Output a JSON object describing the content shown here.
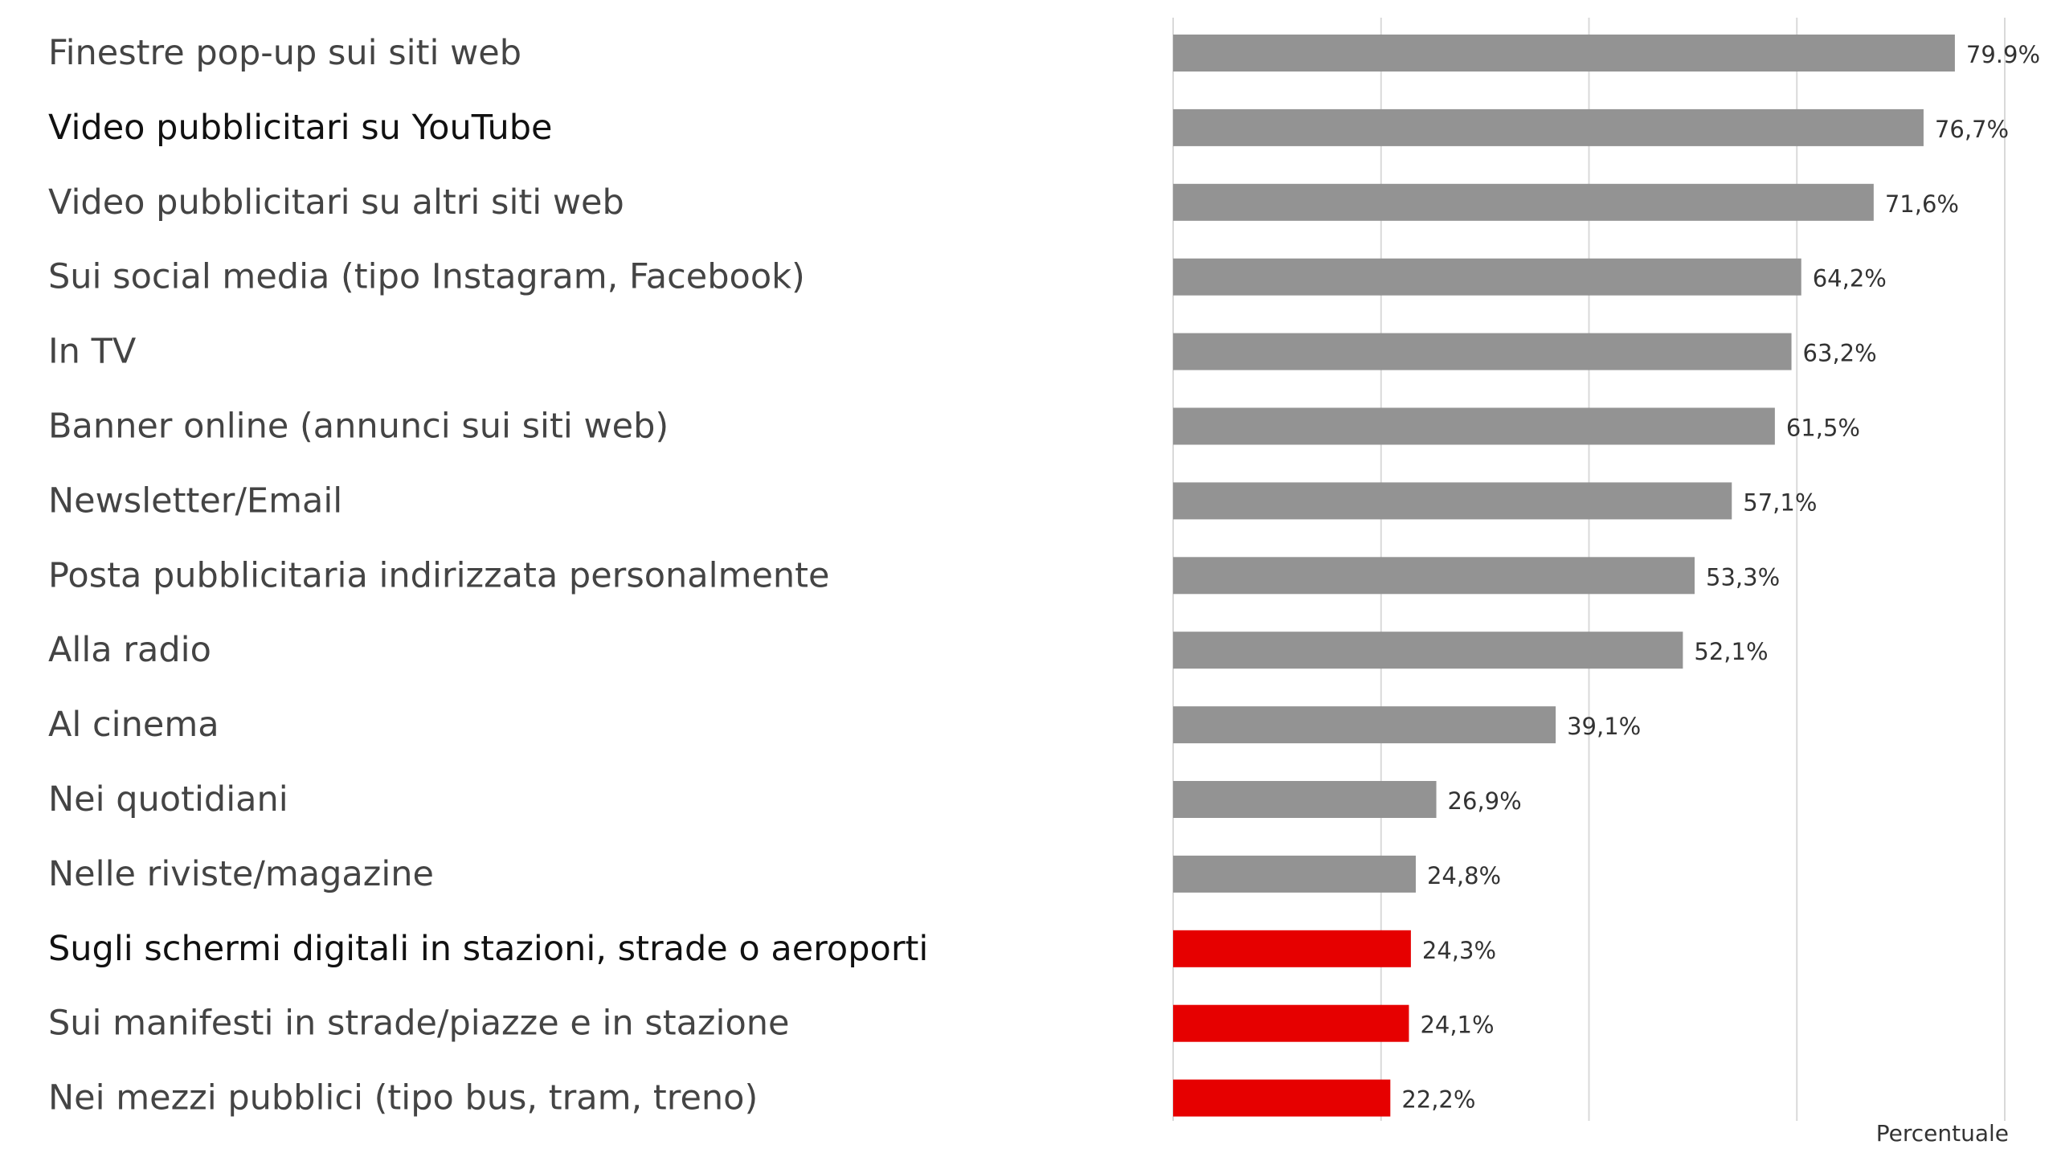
{
  "chart_data": {
    "type": "bar",
    "orientation": "horizontal",
    "categories": [
      "Finestre pop-up sui siti web",
      "Video pubblicitari su YouTube",
      "Video pubblicitari su altri siti web",
      "Sui social media (tipo Instagram, Facebook)",
      "In TV",
      "Banner online (annunci sui siti web)",
      "Newsletter/Email",
      "Posta pubblicitaria indirizzata personalmente",
      "Alla radio",
      "Al cinema",
      "Nei quotidiani",
      "Nelle riviste/magazine",
      "Sugli schermi digitali in stazioni, strade o aeroporti",
      "Sui manifesti in strade/piazze e in stazione",
      "Nei mezzi pubblici (tipo bus, tram, treno)"
    ],
    "values": [
      79.9,
      76.7,
      71.6,
      64.2,
      63.2,
      61.5,
      57.1,
      53.3,
      52.1,
      39.1,
      26.9,
      24.8,
      24.3,
      24.1,
      22.2
    ],
    "value_labels": [
      "79.9%",
      "76,7%",
      "71,6%",
      "64,2%",
      "63,2%",
      "61,5%",
      "57,1%",
      "53,3%",
      "52,1%",
      "39,1%",
      "26,9%",
      "24,8%",
      "24,3%",
      "24,1%",
      "22,2%"
    ],
    "bar_colors": [
      "#939393",
      "#939393",
      "#939393",
      "#939393",
      "#939393",
      "#939393",
      "#939393",
      "#939393",
      "#939393",
      "#939393",
      "#939393",
      "#939393",
      "#e60000",
      "#e60000",
      "#e60000"
    ],
    "label_colors": [
      "#444444",
      "#111111",
      "#444444",
      "#444444",
      "#444444",
      "#444444",
      "#444444",
      "#444444",
      "#444444",
      "#444444",
      "#444444",
      "#444444",
      "#111111",
      "#444444",
      "#444444"
    ],
    "xlabel": "Percentuale",
    "xlim": [
      0,
      85
    ],
    "gridlines": [
      0,
      21.25,
      42.5,
      63.75,
      85
    ],
    "grid": true,
    "gridline_color": "#d9d9d9",
    "legend": "none"
  }
}
